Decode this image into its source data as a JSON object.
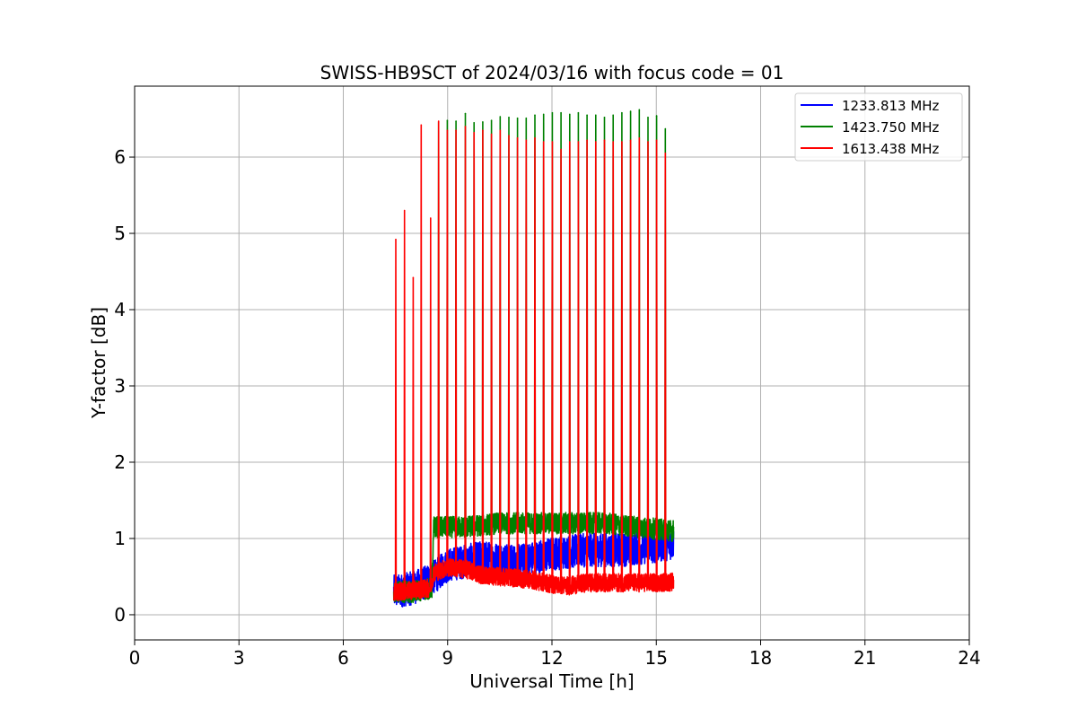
{
  "chart_data": {
    "type": "line",
    "title": "SWISS-HB9SCT of 2024/03/16 with focus code = 01",
    "xlabel": "Universal Time [h]",
    "ylabel": "Y-factor [dB]",
    "xlim": [
      0,
      24
    ],
    "ylim": [
      -0.33,
      6.93
    ],
    "xticks": [
      0,
      3,
      6,
      9,
      12,
      15,
      18,
      21,
      24
    ],
    "yticks": [
      0,
      1,
      2,
      3,
      4,
      5,
      6
    ],
    "grid": true,
    "legend_position": "top-right",
    "series": [
      {
        "name": "1233.813 MHz",
        "color": "#0000ff",
        "baseline": [
          [
            7.45,
            0.3
          ],
          [
            8.0,
            0.35
          ],
          [
            8.5,
            0.45
          ],
          [
            9.0,
            0.65
          ],
          [
            10.0,
            0.75
          ],
          [
            11.0,
            0.7
          ],
          [
            12.0,
            0.8
          ],
          [
            13.0,
            0.85
          ],
          [
            14.0,
            0.85
          ],
          [
            15.0,
            0.9
          ],
          [
            15.5,
            0.95
          ]
        ],
        "noise_amplitude": 0.22,
        "spikes": []
      },
      {
        "name": "1423.750 MHz",
        "color": "#008000",
        "baseline": [
          [
            7.45,
            0.3
          ],
          [
            8.0,
            0.3
          ],
          [
            8.55,
            0.35
          ],
          [
            8.6,
            1.15
          ],
          [
            9.5,
            1.15
          ],
          [
            10.5,
            1.2
          ],
          [
            11.5,
            1.2
          ],
          [
            12.5,
            1.2
          ],
          [
            13.5,
            1.2
          ],
          [
            14.5,
            1.15
          ],
          [
            15.5,
            1.1
          ]
        ],
        "noise_amplitude": 0.14,
        "spikes": [
          [
            8.73,
            6.45
          ],
          [
            8.98,
            6.48
          ],
          [
            9.23,
            6.47
          ],
          [
            9.5,
            6.57
          ],
          [
            9.75,
            6.45
          ],
          [
            10.0,
            6.46
          ],
          [
            10.25,
            6.48
          ],
          [
            10.5,
            6.53
          ],
          [
            10.75,
            6.52
          ],
          [
            11.0,
            6.51
          ],
          [
            11.25,
            6.51
          ],
          [
            11.5,
            6.55
          ],
          [
            11.75,
            6.56
          ],
          [
            12.0,
            6.58
          ],
          [
            12.25,
            6.58
          ],
          [
            12.5,
            6.56
          ],
          [
            12.75,
            6.58
          ],
          [
            13.0,
            6.55
          ],
          [
            13.25,
            6.55
          ],
          [
            13.5,
            6.52
          ],
          [
            13.75,
            6.55
          ],
          [
            14.0,
            6.58
          ],
          [
            14.25,
            6.6
          ],
          [
            14.5,
            6.62
          ],
          [
            14.75,
            6.52
          ],
          [
            15.0,
            6.54
          ],
          [
            15.25,
            6.37
          ]
        ]
      },
      {
        "name": "1613.438 MHz",
        "color": "#ff0000",
        "baseline": [
          [
            7.45,
            0.3
          ],
          [
            8.0,
            0.32
          ],
          [
            8.5,
            0.35
          ],
          [
            8.6,
            0.55
          ],
          [
            9.0,
            0.62
          ],
          [
            9.5,
            0.6
          ],
          [
            10.0,
            0.52
          ],
          [
            10.5,
            0.5
          ],
          [
            11.0,
            0.48
          ],
          [
            11.5,
            0.45
          ],
          [
            12.0,
            0.4
          ],
          [
            12.5,
            0.38
          ],
          [
            13.0,
            0.42
          ],
          [
            14.0,
            0.42
          ],
          [
            15.0,
            0.42
          ],
          [
            15.5,
            0.43
          ]
        ],
        "noise_amplitude": 0.12,
        "spikes": [
          [
            7.5,
            4.92
          ],
          [
            7.75,
            5.3
          ],
          [
            8.0,
            4.42
          ],
          [
            8.23,
            6.42
          ],
          [
            8.5,
            5.2
          ],
          [
            8.73,
            6.47
          ],
          [
            8.98,
            6.35
          ],
          [
            9.23,
            6.35
          ],
          [
            9.5,
            6.4
          ],
          [
            9.75,
            6.32
          ],
          [
            10.0,
            6.35
          ],
          [
            10.25,
            6.3
          ],
          [
            10.5,
            6.35
          ],
          [
            10.75,
            6.28
          ],
          [
            11.0,
            6.25
          ],
          [
            11.25,
            6.22
          ],
          [
            11.5,
            6.25
          ],
          [
            11.75,
            6.2
          ],
          [
            12.0,
            6.2
          ],
          [
            12.25,
            6.1
          ],
          [
            12.5,
            6.2
          ],
          [
            12.75,
            6.2
          ],
          [
            13.0,
            6.22
          ],
          [
            13.25,
            6.2
          ],
          [
            13.5,
            6.22
          ],
          [
            13.75,
            6.2
          ],
          [
            14.0,
            6.2
          ],
          [
            14.25,
            6.22
          ],
          [
            14.5,
            6.25
          ],
          [
            14.75,
            6.2
          ],
          [
            15.0,
            6.22
          ],
          [
            15.25,
            6.05
          ]
        ]
      }
    ]
  }
}
